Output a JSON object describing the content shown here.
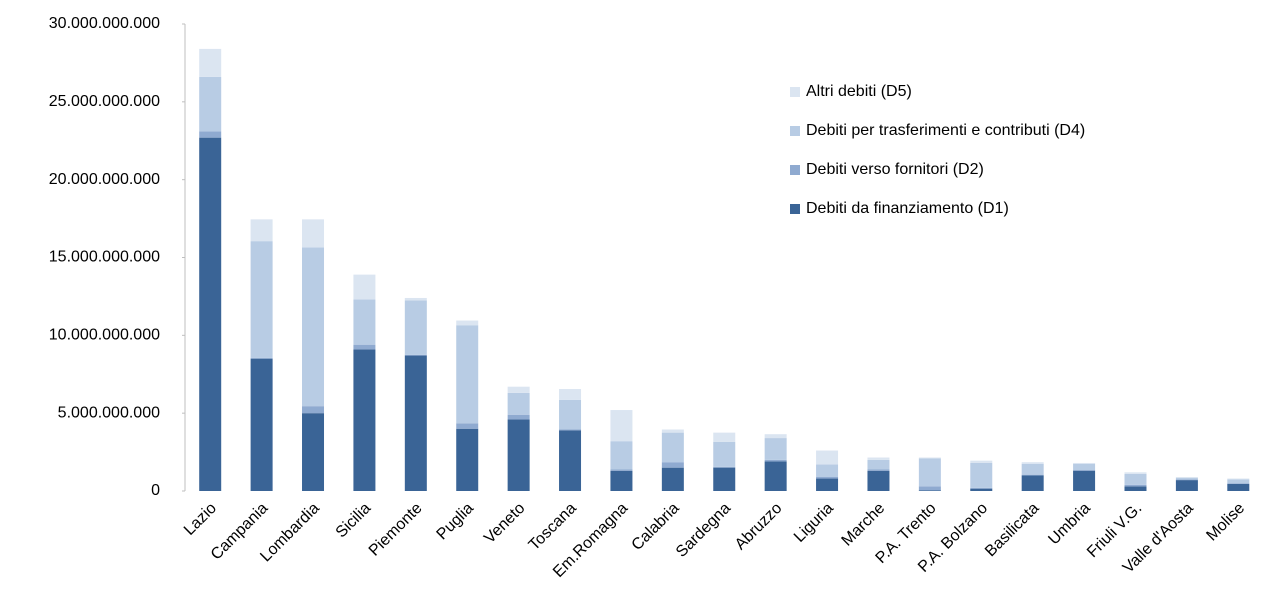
{
  "chart_data": {
    "type": "stacked_bar",
    "categories": [
      "Lazio",
      "Campania",
      "Lombardia",
      "Sicilia",
      "Piemonte",
      "Puglia",
      "Veneto",
      "Toscana",
      "Em.Romagna",
      "Calabria",
      "Sardegna",
      "Abruzzo",
      "Liguria",
      "Marche",
      "P.A. Trento",
      "P.A. Bolzano",
      "Basilicata",
      "Umbria",
      "Friuli V.G.",
      "Valle d'Aosta",
      "Molise"
    ],
    "series": [
      {
        "name": "Debiti da finanziamento (D1)",
        "color": "#3a6496",
        "values": [
          22700000000,
          8500000000,
          5000000000,
          9100000000,
          8700000000,
          4000000000,
          4600000000,
          3900000000,
          1300000000,
          1500000000,
          1500000000,
          1900000000,
          800000000,
          1300000000,
          50000000,
          150000000,
          1000000000,
          1300000000,
          300000000,
          700000000,
          450000000
        ]
      },
      {
        "name": "Debiti verso fornitori (D2)",
        "color": "#8faad0",
        "values": [
          400000000,
          50000000,
          450000000,
          300000000,
          50000000,
          350000000,
          300000000,
          50000000,
          100000000,
          350000000,
          50000000,
          100000000,
          100000000,
          100000000,
          250000000,
          50000000,
          50000000,
          50000000,
          100000000,
          50000000,
          50000000
        ]
      },
      {
        "name": "Debiti per trasferimenti e contributi (D4)",
        "color": "#b8cce4",
        "values": [
          3500000000,
          7500000000,
          10200000000,
          2900000000,
          3500000000,
          6300000000,
          1400000000,
          1900000000,
          1800000000,
          1900000000,
          1600000000,
          1400000000,
          800000000,
          600000000,
          1800000000,
          1600000000,
          700000000,
          400000000,
          700000000,
          100000000,
          250000000
        ]
      },
      {
        "name": "Altri debiti (D5)",
        "color": "#dbe5f1",
        "values": [
          1800000000,
          1400000000,
          1800000000,
          1600000000,
          150000000,
          300000000,
          400000000,
          700000000,
          2000000000,
          200000000,
          600000000,
          250000000,
          900000000,
          150000000,
          50000000,
          150000000,
          100000000,
          50000000,
          100000000,
          50000000,
          50000000
        ]
      }
    ],
    "ylim": [
      0,
      30000000000
    ],
    "yticks": [
      0,
      {
        "value": 5000000000,
        "label": "5.000.000.000"
      },
      {
        "value": 10000000000,
        "label": "10.000.000.000"
      },
      {
        "value": 15000000000,
        "label": "15.000.000.000"
      },
      {
        "value": 20000000000,
        "label": "20.000.000.000"
      },
      {
        "value": 25000000000,
        "label": "25.000.000.000"
      },
      {
        "value": 30000000000,
        "label": "30.000.000.000"
      }
    ],
    "legend": "right"
  }
}
